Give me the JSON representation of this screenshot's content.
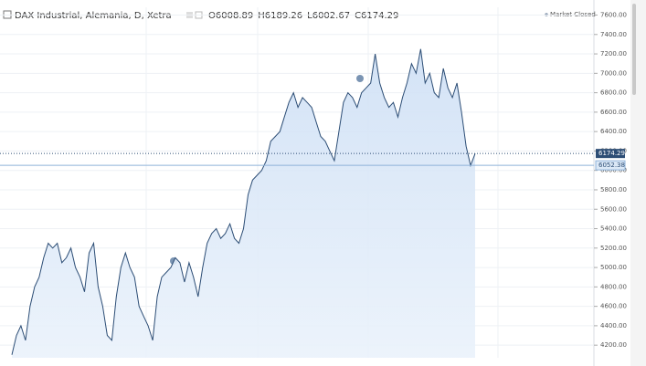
{
  "chart_data": {
    "type": "area",
    "title": "DAX Industrial, Alemania, D, Xetra",
    "ohlc": [
      {
        "label": "O",
        "value": 6008.89
      },
      {
        "label": "H",
        "value": 6189.26
      },
      {
        "label": "L",
        "value": 6002.67
      },
      {
        "label": "C",
        "value": 6174.29
      }
    ],
    "status": "Market Closed",
    "last_price": 6174.29,
    "reference_price": 6052.38,
    "color": "#2c4d75",
    "ylim": [
      4070,
      7680
    ],
    "yticks": [
      {
        "value": 4200,
        "label": "4200.00"
      },
      {
        "value": 4400,
        "label": "4400.00"
      },
      {
        "value": 4600,
        "label": "4600.00"
      },
      {
        "value": 4800,
        "label": "4800.00"
      },
      {
        "value": 5000,
        "label": "5000.00"
      },
      {
        "value": 5200,
        "label": "5200.00"
      },
      {
        "value": 5400,
        "label": "5400.00"
      },
      {
        "value": 5600,
        "label": "5600.00"
      },
      {
        "value": 5800,
        "label": "5800.00"
      },
      {
        "value": 6000,
        "label": "6000.00"
      },
      {
        "value": 6200,
        "label": "6200.00"
      },
      {
        "value": 6400,
        "label": "6400.00"
      },
      {
        "value": 6600,
        "label": "6600.00"
      },
      {
        "value": 6800,
        "label": "6800.00"
      },
      {
        "value": 7000,
        "label": "7000.00"
      },
      {
        "value": 7200,
        "label": "7200.00"
      },
      {
        "value": 7400,
        "label": "7400.00"
      },
      {
        "value": 7600,
        "label": "7600.00"
      }
    ],
    "grid": true,
    "values": [
      4100,
      4300,
      4400,
      4250,
      4600,
      4800,
      4900,
      5100,
      5250,
      5200,
      5250,
      5050,
      5100,
      5200,
      5000,
      4900,
      4750,
      5150,
      5250,
      4800,
      4600,
      4300,
      4250,
      4700,
      5000,
      5150,
      5000,
      4900,
      4600,
      4500,
      4400,
      4250,
      4700,
      4900,
      4950,
      5000,
      5100,
      5050,
      4850,
      5050,
      4900,
      4700,
      5000,
      5250,
      5350,
      5400,
      5300,
      5350,
      5450,
      5300,
      5250,
      5400,
      5750,
      5900,
      5950,
      6000,
      6100,
      6300,
      6350,
      6400,
      6550,
      6700,
      6800,
      6650,
      6750,
      6700,
      6650,
      6500,
      6350,
      6300,
      6200,
      6100,
      6400,
      6700,
      6800,
      6750,
      6650,
      6800,
      6850,
      6900,
      7200,
      6900,
      6750,
      6650,
      6700,
      6550,
      6750,
      6900,
      7100,
      7000,
      7250,
      6900,
      7000,
      6800,
      6750,
      7050,
      6850,
      6750,
      6900,
      6600,
      6250,
      6050,
      6174.29
    ]
  }
}
